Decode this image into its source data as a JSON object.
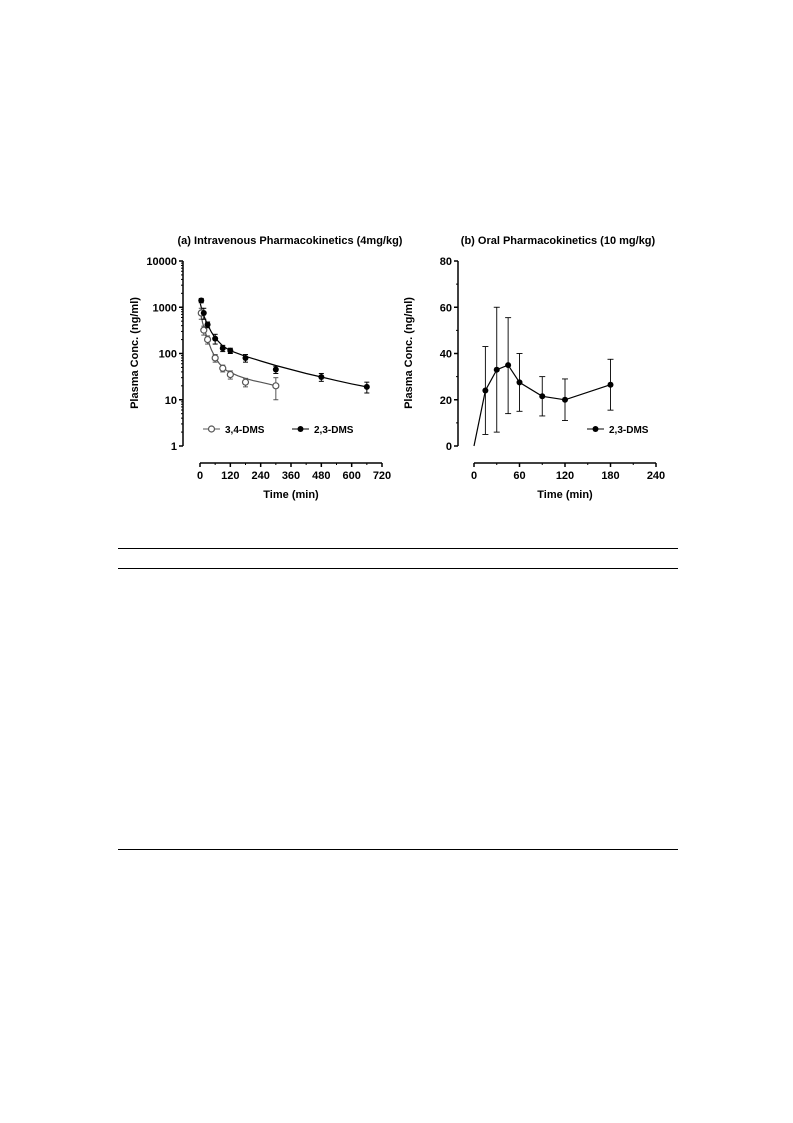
{
  "chart_data": [
    {
      "type": "scatter",
      "title": "(a) Intravenous Pharmacokinetics (4mg/kg)",
      "xlabel": "Time (min)",
      "ylabel": "Plasma Conc. (ng/ml)",
      "xlim": [
        0,
        720
      ],
      "ylim": [
        1,
        10000
      ],
      "yscale": "log",
      "xticks": [
        0,
        120,
        240,
        360,
        480,
        600,
        720
      ],
      "yticks": [
        1,
        10,
        100,
        1000,
        10000
      ],
      "xtick_labels": [
        "0",
        "120",
        "240",
        "360",
        "480",
        "600",
        "720"
      ],
      "ytick_labels": [
        "1",
        "10",
        "100",
        "1000",
        "10000"
      ],
      "legend": "bottom",
      "grid": false,
      "series": [
        {
          "name": "3,4-DMS",
          "marker": "open-circle",
          "color": "#555555",
          "x": [
            5,
            15,
            30,
            60,
            90,
            120,
            180,
            300
          ],
          "y": [
            750,
            320,
            200,
            80,
            48,
            35,
            24,
            20
          ],
          "err": [
            200,
            70,
            40,
            15,
            8,
            7,
            5,
            10
          ],
          "fit_x": [
            1,
            5,
            10,
            20,
            30,
            45,
            60,
            75,
            90,
            105,
            120,
            150,
            180,
            210,
            240,
            270,
            300
          ],
          "fit_y": [
            900,
            640,
            470,
            300,
            200,
            120,
            82,
            62,
            50,
            43,
            39,
            33,
            29,
            26,
            24,
            22,
            20
          ]
        },
        {
          "name": "2,3-DMS",
          "marker": "filled-circle",
          "color": "#000000",
          "x": [
            5,
            15,
            30,
            60,
            90,
            120,
            180,
            300,
            480,
            660
          ],
          "y": [
            1400,
            750,
            420,
            210,
            130,
            115,
            80,
            45,
            31,
            19
          ],
          "err": [
            150,
            200,
            60,
            50,
            20,
            15,
            15,
            8,
            6,
            5
          ],
          "fit_x": [
            1,
            10,
            20,
            30,
            45,
            60,
            90,
            120,
            180,
            240,
            300,
            360,
            420,
            480,
            540,
            600,
            660
          ],
          "fit_y": [
            1200,
            780,
            560,
            420,
            290,
            215,
            145,
            115,
            87,
            69,
            55,
            45,
            37,
            31,
            26,
            22,
            19
          ]
        }
      ]
    },
    {
      "type": "line",
      "title": "(b) Oral Pharmacokinetics (10 mg/kg)",
      "xlabel": "Time (min)",
      "ylabel": "Plasma Conc. (ng/ml)",
      "xlim": [
        0,
        240
      ],
      "ylim": [
        0,
        80
      ],
      "xticks": [
        0,
        60,
        120,
        180,
        240
      ],
      "yticks": [
        0,
        20,
        40,
        60,
        80
      ],
      "xtick_labels": [
        "0",
        "60",
        "120",
        "180",
        "240"
      ],
      "ytick_labels": [
        "0",
        "20",
        "40",
        "60",
        "80"
      ],
      "legend": "bottom-right",
      "grid": false,
      "series": [
        {
          "name": "2,3-DMS",
          "marker": "filled-circle",
          "color": "#000000",
          "x": [
            15,
            30,
            45,
            60,
            90,
            120,
            180
          ],
          "y": [
            24,
            33,
            35,
            27.5,
            21.5,
            20,
            26.5
          ],
          "err_upper": [
            43,
            60,
            55.5,
            40,
            30,
            29,
            37.5
          ],
          "err_lower": [
            5,
            6,
            14,
            15,
            13,
            11,
            15.5
          ],
          "line_x": [
            0,
            5,
            10,
            15,
            30,
            45,
            60,
            90,
            120,
            180
          ],
          "line_y": [
            0,
            8,
            16,
            24,
            33,
            35,
            27.5,
            21.5,
            20,
            26.5
          ]
        }
      ]
    }
  ]
}
